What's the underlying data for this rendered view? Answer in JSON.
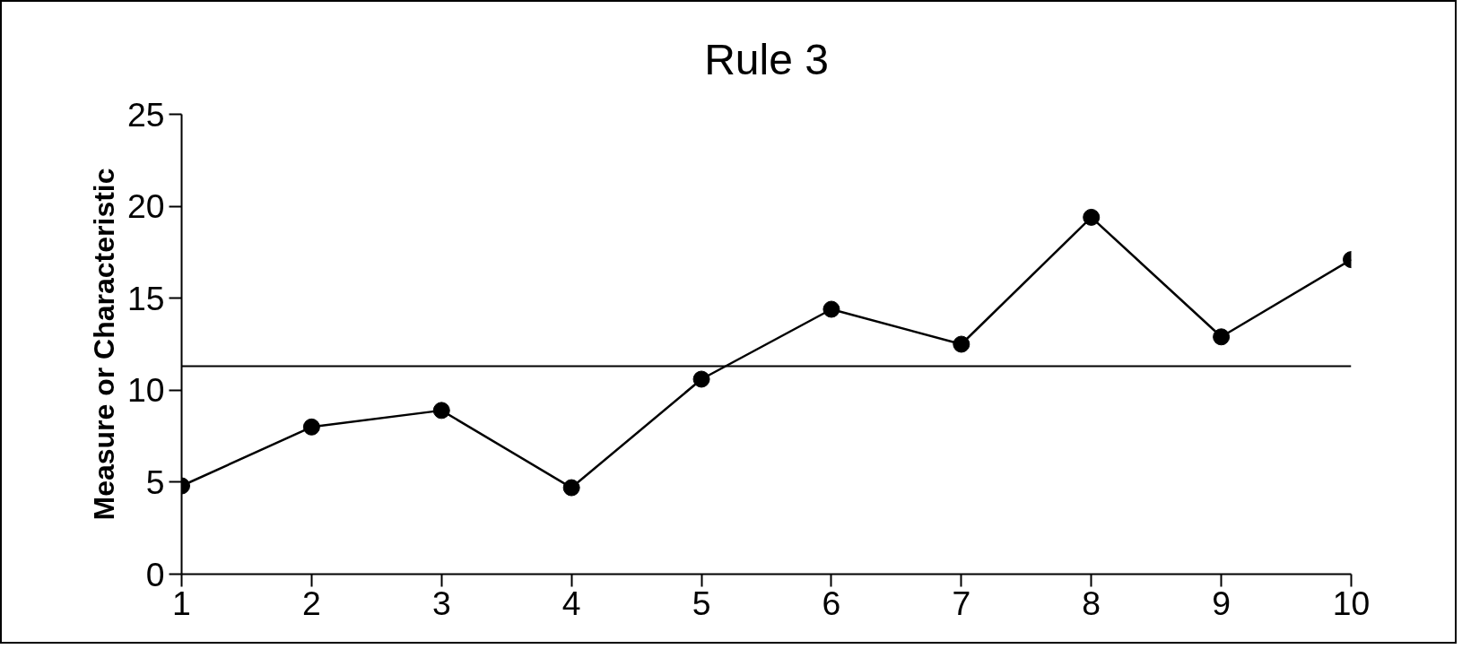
{
  "chart_data": {
    "type": "line",
    "title": "Rule 3",
    "ylabel": "Measure or Characteristic",
    "x": [
      1,
      2,
      3,
      4,
      5,
      6,
      7,
      8,
      9,
      10
    ],
    "series": [
      {
        "color": "#000000",
        "values": [
          4.8,
          8.0,
          8.9,
          4.7,
          10.6,
          14.4,
          12.5,
          19.4,
          12.9,
          17.1
        ]
      }
    ],
    "xlim": [
      1,
      10
    ],
    "xticks": [
      1,
      2,
      3,
      4,
      5,
      6,
      7,
      8,
      9,
      10
    ],
    "ylim": [
      0,
      25
    ],
    "yticks": [
      0,
      5,
      10,
      15,
      20,
      25
    ],
    "ref_lines": [
      {
        "axis": "y",
        "value": 11.3,
        "color": "#000000"
      }
    ],
    "marker": "circle",
    "grid": false
  }
}
